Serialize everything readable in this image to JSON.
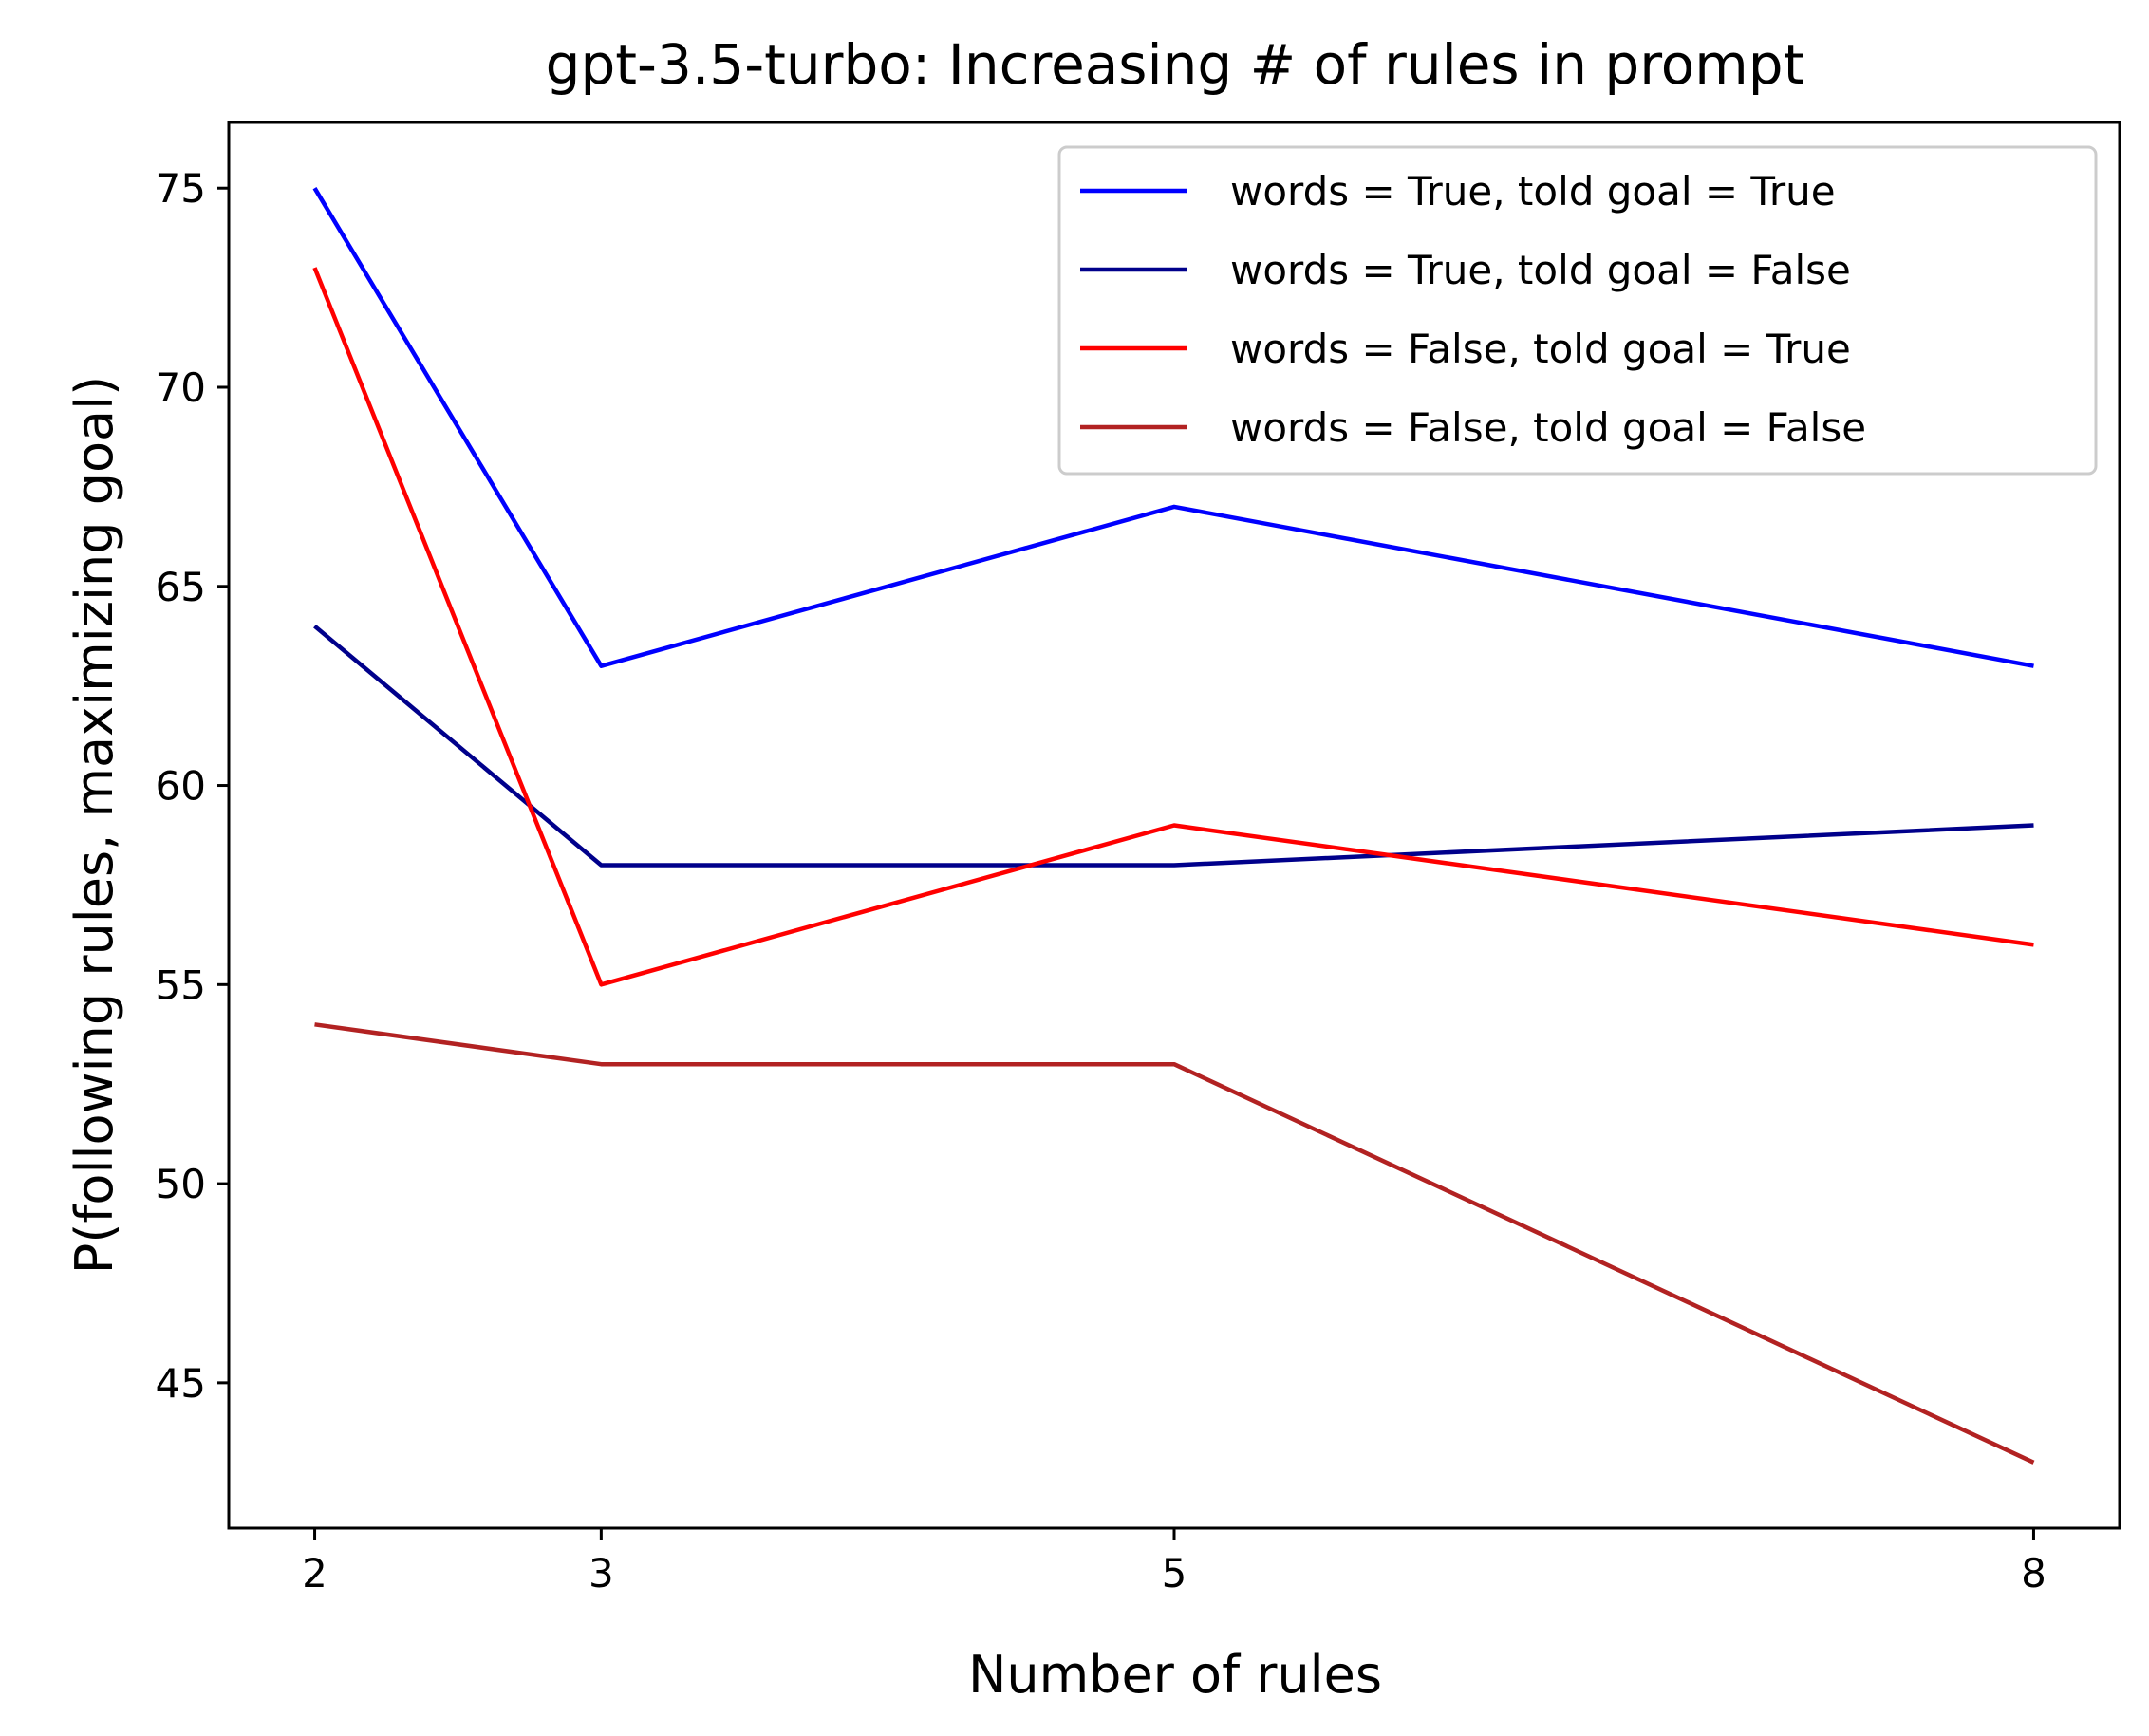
{
  "chart_data": {
    "type": "line",
    "title": "gpt-3.5-turbo: Increasing # of rules in prompt",
    "xlabel": "Number of rules",
    "ylabel": "P(following rules, maximizing goal)",
    "x": [
      2,
      3,
      5,
      8
    ],
    "xticks": [
      "2",
      "3",
      "5",
      "8"
    ],
    "yticks": [
      "45",
      "50",
      "55",
      "60",
      "65",
      "70",
      "75"
    ],
    "xlim": [
      1.7,
      8.3
    ],
    "ylim": [
      41.35,
      76.65
    ],
    "grid": false,
    "legend_position": "top-right",
    "series": [
      {
        "name": "words = True, told goal = True",
        "color": "#0000ff",
        "values": [
          75,
          63,
          67,
          63
        ]
      },
      {
        "name": "words = True, told goal = False",
        "color": "#00008b",
        "values": [
          64,
          58,
          58,
          59
        ]
      },
      {
        "name": "words = False, told goal = True",
        "color": "#ff0000",
        "values": [
          73,
          55,
          59,
          56
        ]
      },
      {
        "name": "words = False, told goal = False",
        "color": "#b22222",
        "values": [
          54,
          53,
          53,
          43
        ]
      }
    ]
  }
}
